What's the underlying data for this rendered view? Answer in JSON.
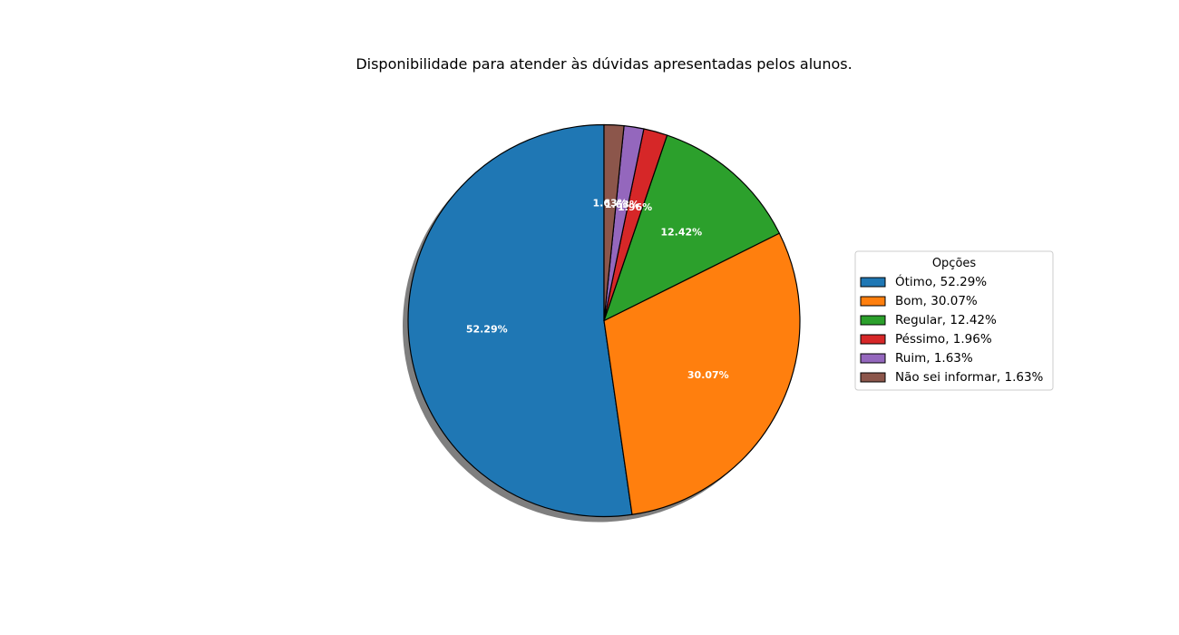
{
  "chart_data": {
    "type": "pie",
    "title": "Disponibilidade para atender às dúvidas apresentadas pelos alunos.",
    "legend_title": "Opções",
    "legend_position": "right",
    "shadow": true,
    "start_angle_deg": 90,
    "direction": "counterclockwise",
    "slices": [
      {
        "label": "Ótimo",
        "value": 52.29,
        "pct_label": "52.29%",
        "legend": "Ótimo, 52.29%",
        "color": "#1f77b4"
      },
      {
        "label": "Bom",
        "value": 30.07,
        "pct_label": "30.07%",
        "legend": "Bom, 30.07%",
        "color": "#ff7f0e"
      },
      {
        "label": "Regular",
        "value": 12.42,
        "pct_label": "12.42%",
        "legend": "Regular, 12.42%",
        "color": "#2ca02c"
      },
      {
        "label": "Péssimo",
        "value": 1.96,
        "pct_label": "1.96%",
        "legend": "Péssimo, 1.96%",
        "color": "#d62728"
      },
      {
        "label": "Ruim",
        "value": 1.63,
        "pct_label": "1.63%",
        "legend": "Ruim, 1.63%",
        "color": "#9467bd"
      },
      {
        "label": "Não sei informar",
        "value": 1.63,
        "pct_label": "1.63%",
        "legend": "Não sei informar, 1.63%",
        "color": "#8c564b"
      }
    ]
  }
}
